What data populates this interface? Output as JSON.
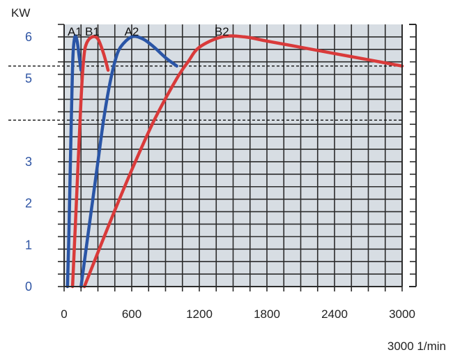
{
  "chart_data": {
    "type": "line",
    "ylabel": "KW",
    "xlabel": "3000 1/min",
    "xlim": [
      0,
      3000
    ],
    "ylim": [
      0,
      6.3
    ],
    "x_ticks": [
      "0",
      "600",
      "1200",
      "1800",
      "2400",
      "3000"
    ],
    "y_ticks": [
      "0",
      "1",
      "2",
      "3",
      "5",
      "6"
    ],
    "y_tick_values": [
      0,
      1,
      2,
      3,
      5,
      6
    ],
    "grid": true,
    "reference_lines_kw": [
      5.3,
      4.0
    ],
    "colors": {
      "blue": "#2a55a6",
      "red": "#d93a3a",
      "grid_bg": "#d7dde3"
    },
    "series": [
      {
        "name": "A1",
        "color": "#2a55a6",
        "points": [
          [
            30,
            0
          ],
          [
            40,
            1
          ],
          [
            52,
            2.5
          ],
          [
            64,
            4
          ],
          [
            78,
            5.5
          ],
          [
            95,
            6
          ],
          [
            115,
            5.9
          ],
          [
            135,
            5.5
          ],
          [
            150,
            5.2
          ]
        ]
      },
      {
        "name": "B1",
        "color": "#d93a3a",
        "points": [
          [
            75,
            0
          ],
          [
            100,
            1.5
          ],
          [
            125,
            3
          ],
          [
            150,
            4.5
          ],
          [
            175,
            5.5
          ],
          [
            200,
            5.85
          ],
          [
            250,
            6
          ],
          [
            300,
            5.95
          ],
          [
            350,
            5.6
          ],
          [
            390,
            5.2
          ]
        ]
      },
      {
        "name": "A2",
        "color": "#2a55a6",
        "points": [
          [
            150,
            0
          ],
          [
            200,
            1
          ],
          [
            250,
            2
          ],
          [
            300,
            3
          ],
          [
            350,
            4
          ],
          [
            400,
            4.8
          ],
          [
            450,
            5.4
          ],
          [
            500,
            5.75
          ],
          [
            600,
            6
          ],
          [
            700,
            5.95
          ],
          [
            800,
            5.75
          ],
          [
            900,
            5.5
          ],
          [
            1000,
            5.3
          ]
        ]
      },
      {
        "name": "B2",
        "color": "#d93a3a",
        "points": [
          [
            180,
            0
          ],
          [
            400,
            1.5
          ],
          [
            600,
            2.8
          ],
          [
            800,
            4.0
          ],
          [
            1000,
            5.0
          ],
          [
            1100,
            5.4
          ],
          [
            1200,
            5.75
          ],
          [
            1400,
            6
          ],
          [
            1600,
            6
          ],
          [
            1800,
            5.9
          ],
          [
            2100,
            5.75
          ],
          [
            2400,
            5.6
          ],
          [
            2700,
            5.45
          ],
          [
            3000,
            5.3
          ]
        ]
      }
    ]
  }
}
